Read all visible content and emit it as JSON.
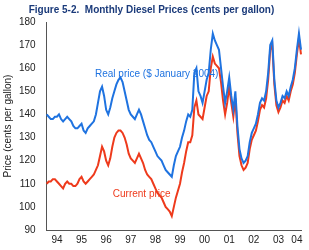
{
  "chart_data": {
    "type": "line",
    "title": "Figure 5-2.  Monthly Diesel Prices (cents per gallon)",
    "y_label": "Price (cents per gallon)",
    "categories": [
      null,
      null,
      null,
      null,
      null,
      "94",
      null,
      null,
      null,
      null,
      null,
      null,
      null,
      null,
      null,
      null,
      null,
      "95",
      null,
      null,
      null,
      null,
      null,
      null,
      null,
      null,
      null,
      null,
      null,
      "96",
      null,
      null,
      null,
      null,
      null,
      null,
      null,
      null,
      null,
      null,
      null,
      "97",
      null,
      null,
      null,
      null,
      null,
      null,
      null,
      null,
      null,
      null,
      null,
      "98",
      null,
      null,
      null,
      null,
      null,
      null,
      null,
      null,
      null,
      null,
      null,
      "99",
      null,
      null,
      null,
      null,
      null,
      null,
      null,
      null,
      null,
      null,
      null,
      "00",
      null,
      null,
      null,
      null,
      null,
      null,
      null,
      null,
      null,
      null,
      null,
      "01",
      null,
      null,
      null,
      null,
      null,
      null,
      null,
      null,
      null,
      null,
      null,
      "02",
      null,
      null,
      null,
      null,
      null,
      null,
      null,
      null,
      null,
      null,
      null,
      "03",
      null,
      null,
      null,
      null,
      null,
      null,
      null,
      null,
      "04",
      null,
      null
    ],
    "series": [
      {
        "name": "Real price ($ January 2004)",
        "color": "#1f73e0",
        "values": [
          140,
          139,
          138,
          138,
          139,
          139,
          140,
          138,
          137,
          138,
          139,
          138,
          137,
          135,
          134,
          134,
          135,
          136,
          133,
          132,
          134,
          135,
          136,
          137,
          140,
          145,
          150,
          152,
          148,
          142,
          140,
          143,
          147,
          150,
          153,
          155,
          156,
          154,
          150,
          146,
          142,
          140,
          139,
          138,
          140,
          142,
          140,
          137,
          134,
          131,
          129,
          128,
          126,
          124,
          122,
          121,
          120,
          118,
          116,
          115,
          114,
          113,
          118,
          122,
          124,
          126,
          130,
          133,
          137,
          140,
          139,
          142,
          158,
          160,
          150,
          148,
          145,
          150,
          155,
          158,
          168,
          175,
          172,
          170,
          168,
          160,
          152,
          145,
          150,
          156,
          148,
          142,
          150,
          135,
          125,
          121,
          119,
          120,
          122,
          128,
          132,
          134,
          136,
          140,
          145,
          147,
          146,
          150,
          158,
          170,
          172,
          155,
          146,
          143,
          145,
          148,
          147,
          150,
          148,
          152,
          155,
          160,
          168,
          175,
          168
        ]
      },
      {
        "name": "Current price",
        "color": "#ee3a1c",
        "values": [
          110,
          111,
          111,
          112,
          112,
          111,
          110,
          109,
          108,
          110,
          111,
          110,
          110,
          109,
          109,
          110,
          112,
          113,
          111,
          110,
          111,
          112,
          113,
          114,
          116,
          118,
          122,
          126,
          124,
          120,
          118,
          121,
          126,
          130,
          132,
          133,
          133,
          132,
          130,
          127,
          123,
          121,
          120,
          119,
          121,
          123,
          121,
          119,
          116,
          114,
          113,
          112,
          110,
          108,
          106,
          105,
          104,
          102,
          100,
          99,
          98,
          96,
          100,
          104,
          107,
          110,
          115,
          119,
          124,
          128,
          128,
          131,
          143,
          146,
          140,
          139,
          138,
          143,
          148,
          150,
          160,
          165,
          162,
          161,
          160,
          154,
          146,
          140,
          145,
          152,
          145,
          139,
          147,
          132,
          122,
          118,
          116,
          117,
          119,
          125,
          129,
          131,
          133,
          137,
          142,
          144,
          143,
          147,
          155,
          168,
          170,
          153,
          144,
          141,
          143,
          146,
          145,
          148,
          146,
          150,
          153,
          158,
          166,
          173,
          166
        ]
      }
    ],
    "annotations": [
      {
        "text": "Real price ($ January 2004)",
        "series": "Real price ($ January 2004)"
      },
      {
        "text": "Current price",
        "series": "Current price"
      }
    ],
    "ylim": [
      90,
      180
    ],
    "yticks": [
      90,
      100,
      110,
      120,
      130,
      140,
      150,
      160,
      170,
      180
    ],
    "grid": false
  }
}
